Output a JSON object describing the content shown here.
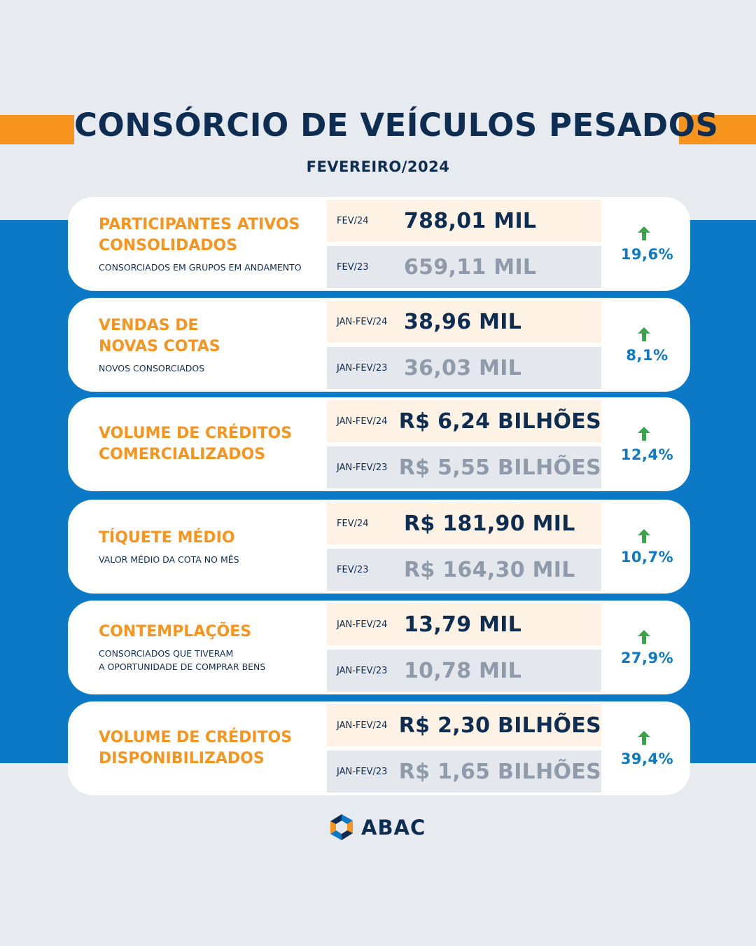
{
  "header": {
    "title": "CONSÓRCIO DE VEÍCULOS PESADOS",
    "subtitle": "FEVEREIRO/2024"
  },
  "colors": {
    "orange": "#f7941e",
    "navy": "#0e2d52",
    "blue": "#0b79c6",
    "up_arrow": "#3aa64a"
  },
  "cards": [
    {
      "title": "PARTICIPANTES ATIVOS\nCONSOLIDADOS",
      "description": "CONSORCIADOS EM GRUPOS EM ANDAMENTO",
      "current": {
        "period": "FEV/24",
        "value": "788,01 MIL"
      },
      "previous": {
        "period": "FEV/23",
        "value": "659,11 MIL"
      },
      "change": "19,6%",
      "trend_icon": "up-arrow-icon"
    },
    {
      "title": "VENDAS DE\nNOVAS COTAS",
      "description": "NOVOS CONSORCIADOS",
      "current": {
        "period": "JAN-FEV/24",
        "value": "38,96 MIL"
      },
      "previous": {
        "period": "JAN-FEV/23",
        "value": "36,03 MIL"
      },
      "change": "8,1%",
      "trend_icon": "up-arrow-icon"
    },
    {
      "title": "VOLUME DE CRÉDITOS\nCOMERCIALIZADOS",
      "description": "",
      "current": {
        "period": "JAN-FEV/24",
        "value": "R$ 6,24 BILHÕES"
      },
      "previous": {
        "period": "JAN-FEV/23",
        "value": "R$ 5,55 BILHÕES"
      },
      "change": "12,4%",
      "trend_icon": "up-arrow-icon"
    },
    {
      "title": "TÍQUETE MÉDIO",
      "description": "VALOR MÉDIO DA COTA NO MÊS",
      "current": {
        "period": "FEV/24",
        "value": "R$ 181,90 MIL"
      },
      "previous": {
        "period": "FEV/23",
        "value": "R$ 164,30 MIL"
      },
      "change": "10,7%",
      "trend_icon": "up-arrow-icon"
    },
    {
      "title": "CONTEMPLAÇÕES",
      "description": "CONSORCIADOS QUE TIVERAM\nA OPORTUNIDADE DE COMPRAR BENS",
      "current": {
        "period": "JAN-FEV/24",
        "value": "13,79 MIL"
      },
      "previous": {
        "period": "JAN-FEV/23",
        "value": "10,78 MIL"
      },
      "change": "27,9%",
      "trend_icon": "up-arrow-icon"
    },
    {
      "title": "VOLUME DE CRÉDITOS\nDISPONIBILIZADOS",
      "description": "",
      "current": {
        "period": "JAN-FEV/24",
        "value": "R$ 2,30 BILHÕES"
      },
      "previous": {
        "period": "JAN-FEV/23",
        "value": "R$ 1,65 BILHÕES"
      },
      "change": "39,4%",
      "trend_icon": "up-arrow-icon"
    }
  ],
  "footer": {
    "logo_text": "ABAC",
    "logo_icon": "abac-logo-icon"
  }
}
